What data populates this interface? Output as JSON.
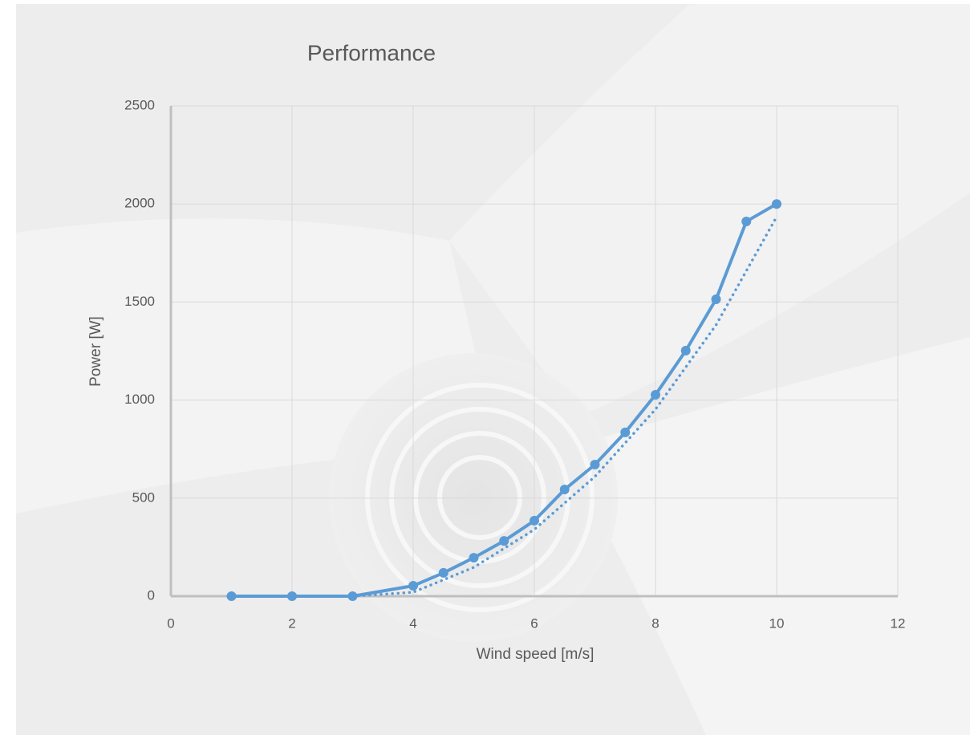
{
  "chart_data": {
    "type": "line",
    "title": "Performance",
    "x_label": "Wind speed [m/s]",
    "y_label": "Power [W]",
    "xlim": [
      0,
      12
    ],
    "xticks": [
      0,
      2,
      4,
      6,
      8,
      10,
      12
    ],
    "ylim": [
      0,
      2500
    ],
    "yticks": [
      0,
      500,
      1000,
      1500,
      2000,
      2500
    ],
    "grid": true,
    "series": [
      {
        "color": "#5b9bd5",
        "markers": true,
        "line_style": "solid",
        "x": [
          1,
          2,
          3,
          4,
          4.5,
          5,
          5.5,
          6,
          6.5,
          7,
          7.5,
          8,
          8.5,
          9,
          9.5,
          10
        ],
        "values": [
          0,
          0,
          0,
          53,
          119,
          196,
          282,
          385,
          544,
          671,
          835,
          1027,
          1252,
          1514,
          1911,
          2000
        ]
      },
      {
        "color": "#5b9bd5",
        "markers": false,
        "line_style": "dotted",
        "x": [
          3,
          4,
          5,
          6,
          7,
          8,
          9,
          10
        ],
        "values": [
          0,
          20,
          147,
          340,
          610,
          953,
          1383,
          1935
        ]
      }
    ]
  }
}
